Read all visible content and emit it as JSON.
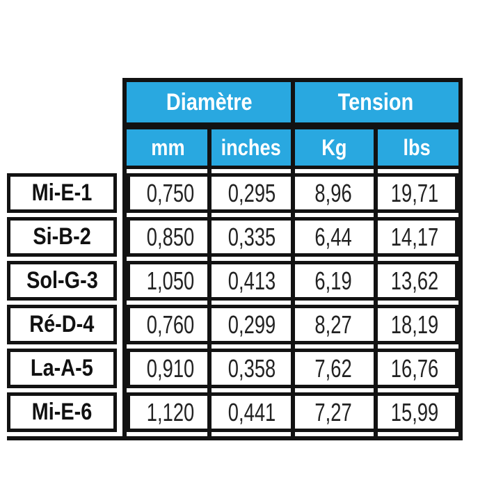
{
  "chart_data": {
    "type": "table",
    "column_groups": [
      "Diamètre",
      "Tension"
    ],
    "columns": [
      "mm",
      "inches",
      "Kg",
      "lbs"
    ],
    "rows": [
      {
        "label": "Mi-E-1",
        "values": [
          "0,750",
          "0,295",
          "8,96",
          "19,71"
        ]
      },
      {
        "label": "Si-B-2",
        "values": [
          "0,850",
          "0,335",
          "6,44",
          "14,17"
        ]
      },
      {
        "label": "Sol-G-3",
        "values": [
          "1,050",
          "0,413",
          "6,19",
          "13,62"
        ]
      },
      {
        "label": "Ré-D-4",
        "values": [
          "0,760",
          "0,299",
          "8,27",
          "18,19"
        ]
      },
      {
        "label": "La-A-5",
        "values": [
          "0,910",
          "0,358",
          "7,62",
          "16,76"
        ]
      },
      {
        "label": "Mi-E-6",
        "values": [
          "1,120",
          "0,441",
          "7,27",
          "15,99"
        ]
      }
    ],
    "layout_hints": {
      "grid": "on",
      "header_rows": 2,
      "decimal_separator": "comma"
    }
  },
  "colors": {
    "header_bg": "#29A8E0",
    "header_text": "#ffffff",
    "border": "#121212",
    "cell_bg": "#ffffff",
    "label_text": "#111111",
    "value_text": "#222222"
  }
}
